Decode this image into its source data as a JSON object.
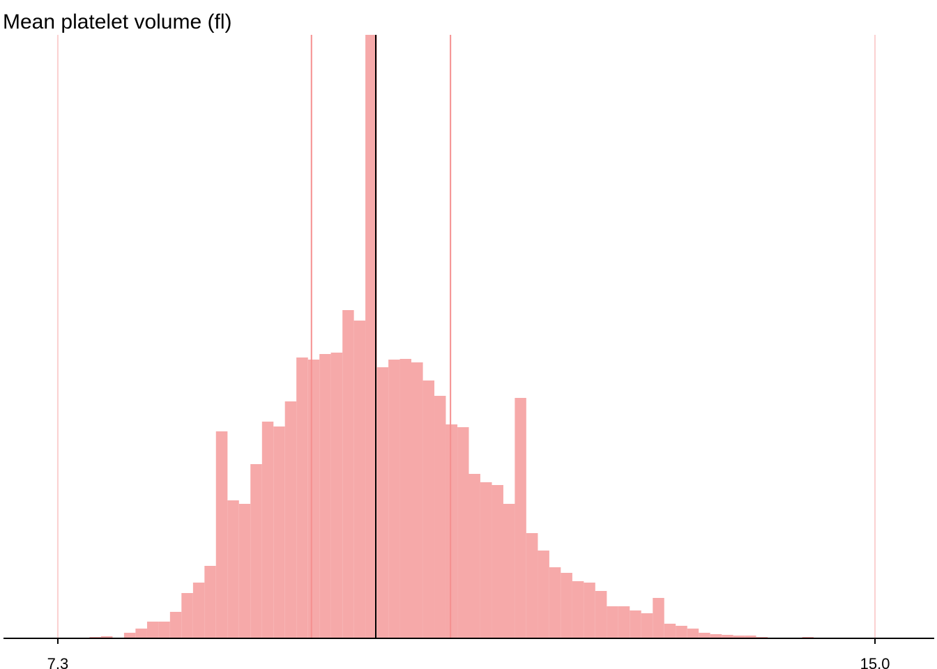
{
  "chart_data": {
    "type": "histogram",
    "title": "Mean platelet volume (fl)",
    "bins": [
      7.599,
      7.707,
      7.816,
      7.924,
      8.032,
      8.141,
      8.249,
      8.357,
      8.465,
      8.574,
      8.682,
      8.79,
      8.899,
      9.007,
      9.115,
      9.224,
      9.332,
      9.44,
      9.548,
      9.657,
      9.765,
      9.873,
      9.982,
      10.09,
      10.198,
      10.307,
      10.415,
      10.523,
      10.631,
      10.74,
      10.848,
      10.956,
      11.065,
      11.173,
      11.281,
      11.39,
      11.498,
      11.606,
      11.714,
      11.823,
      11.931,
      12.039,
      12.148,
      12.256,
      12.364,
      12.473,
      12.581,
      12.689,
      12.797,
      12.906,
      13.014,
      13.122,
      13.231,
      13.339,
      13.447,
      13.556,
      13.664,
      13.772,
      13.88,
      13.989,
      14.097,
      14.205,
      14.314,
      14.422,
      14.53,
      14.639
    ],
    "values": [
      2,
      3,
      1,
      8,
      14,
      24,
      24,
      38,
      65,
      80,
      104,
      297,
      198,
      193,
      250,
      311,
      304,
      340,
      403,
      400,
      408,
      410,
      471,
      456,
      866,
      389,
      400,
      401,
      396,
      370,
      348,
      307,
      303,
      236,
      224,
      220,
      193,
      345,
      151,
      126,
      102,
      94,
      82,
      80,
      68,
      46,
      46,
      40,
      36,
      58,
      21,
      18,
      14,
      8,
      6,
      5,
      4,
      4,
      2,
      1,
      1,
      1,
      2,
      0,
      1
    ],
    "color": "#f6a9a9",
    "reference_lines": [
      {
        "value": 7.3,
        "color": "#fbd0d0"
      },
      {
        "value": 9.69,
        "color": "#f58f8f"
      },
      {
        "value": 10.296,
        "color": "#000000"
      },
      {
        "value": 11.0,
        "color": "#f58f8f"
      },
      {
        "value": 15.0,
        "color": "#fbd0d0"
      }
    ],
    "xlim": [
      6.788,
      15.558
    ],
    "ylim": [
      0,
      866
    ],
    "xticks": [
      7.3,
      {
        "value": 15,
        "label": "15.0"
      }
    ]
  }
}
